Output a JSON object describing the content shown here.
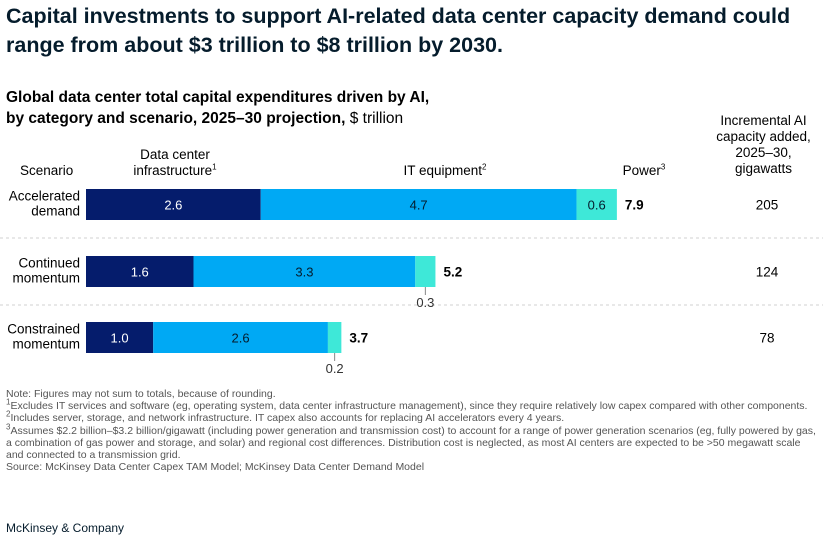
{
  "headline": "Capital investments to support AI-related data center capacity demand could range from about $3 trillion to $8 trillion by 2030.",
  "subtitle": {
    "line1": "Global data center total capital expenditures driven by AI,",
    "line2": "by category and scenario, 2025–30 projection,",
    "unit": "$ trillion"
  },
  "headers": {
    "scenario": "Scenario",
    "infra_line1": "Data center",
    "infra_line2": "infrastructure",
    "infra_sup": "1",
    "it": "IT equipment",
    "it_sup": "2",
    "power": "Power",
    "power_sup": "3",
    "capacity_line1": "Incremental AI",
    "capacity_line2": "capacity added,",
    "capacity_line3": "2025–30,",
    "capacity_line4": "gigawatts"
  },
  "colors": {
    "infrastructure": "#051c6c",
    "it_equipment": "#00a9f4",
    "power": "#3ee8d8",
    "divider": "#d0d0d0"
  },
  "chart_data": {
    "type": "bar",
    "orientation": "horizontal",
    "stacked": true,
    "unit": "$ trillion",
    "categories": [
      [
        "Accelerated",
        "demand"
      ],
      [
        "Continued",
        "momentum"
      ],
      [
        "Constrained",
        "momentum"
      ]
    ],
    "series": [
      {
        "name": "Data center infrastructure",
        "values": [
          2.6,
          1.6,
          1.0
        ],
        "labels": [
          "2.6",
          "1.6",
          "1.0"
        ]
      },
      {
        "name": "IT equipment",
        "values": [
          4.7,
          3.3,
          2.6
        ],
        "labels": [
          "4.7",
          "3.3",
          "2.6"
        ]
      },
      {
        "name": "Power",
        "values": [
          0.6,
          0.3,
          0.2
        ],
        "labels": [
          "0.6",
          "0.3",
          "0.2"
        ]
      }
    ],
    "totals": [
      "7.9",
      "5.2",
      "3.7"
    ],
    "capacity_gw": [
      "205",
      "124",
      "78"
    ],
    "xlim": [
      0,
      8.0
    ]
  },
  "notes": {
    "general": "Note: Figures may not sum to totals, because of rounding.",
    "fn1": "Excludes IT services and software (eg, operating system, data center infrastructure management), since they require relatively low capex compared with other components.",
    "fn2": "Includes server, storage, and network infrastructure. IT capex also accounts for replacing AI accelerators every 4 years.",
    "fn3": "Assumes $2.2 billion–$3.2 billion/gigawatt (including power generation and transmission cost) to account for a range of power generation scenarios (eg, fully powered by gas, a combination of gas power and storage, and solar) and regional cost differences. Distribution cost is neglected, as most AI centers are expected to be >50 megawatt scale and connected to a transmission grid.",
    "source": "Source: McKinsey Data Center Capex TAM Model; McKinsey Data Center Demand Model"
  },
  "brand": "McKinsey & Company"
}
